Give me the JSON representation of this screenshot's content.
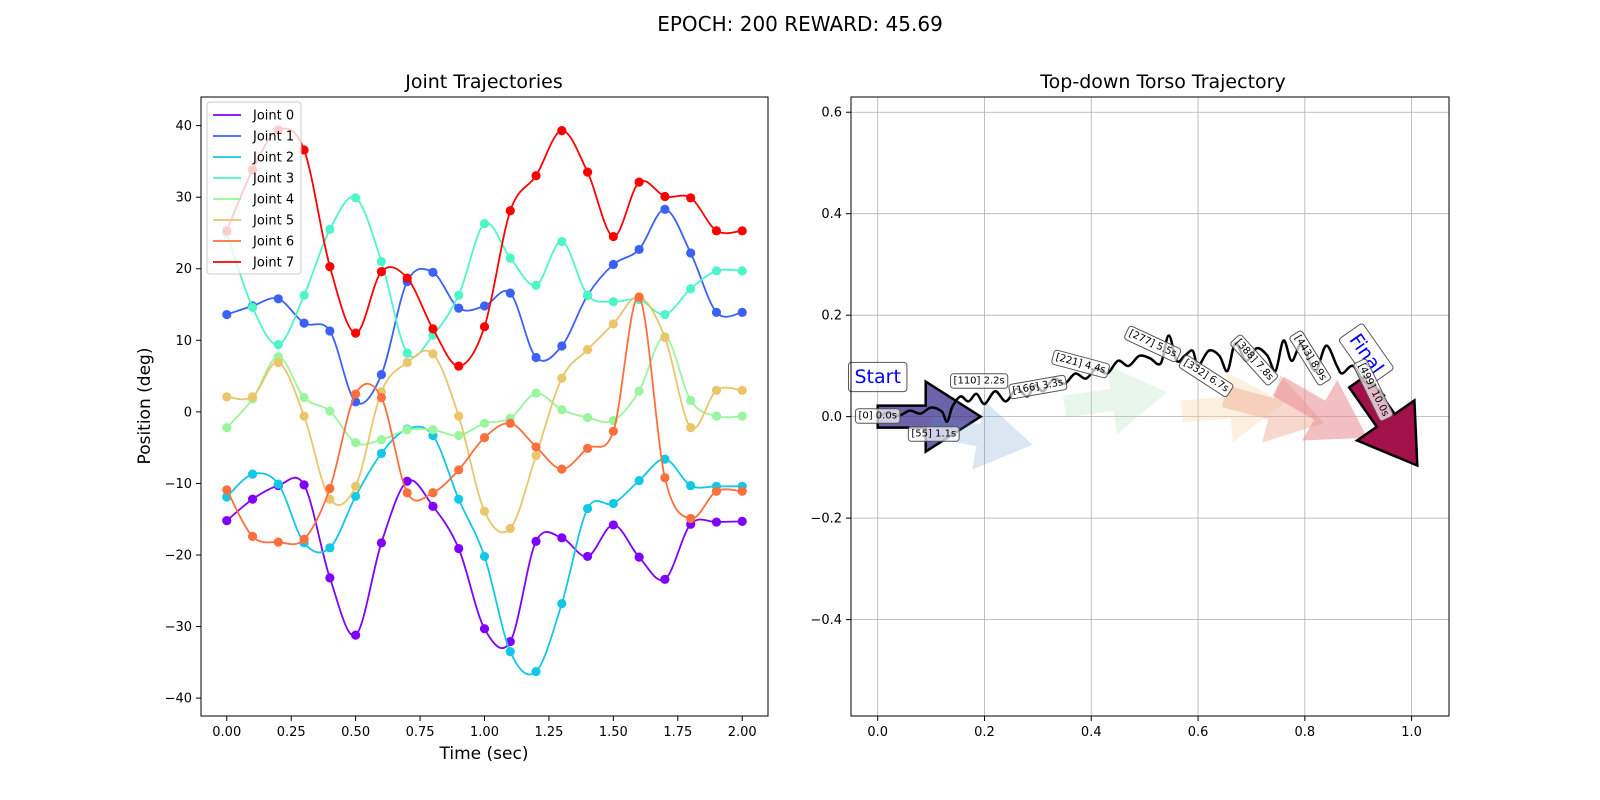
{
  "suptitle": "EPOCH: 200 REWARD:  45.69",
  "chart_data": [
    {
      "type": "line",
      "title": "Joint Trajectories",
      "xlabel": "Time (sec)",
      "ylabel": "Position (deg)",
      "xlim": [
        -0.1,
        2.1
      ],
      "ylim": [
        -42.5,
        44.0
      ],
      "xticks": [
        "0.00",
        "0.25",
        "0.50",
        "0.75",
        "1.00",
        "1.25",
        "1.50",
        "1.75",
        "2.00"
      ],
      "yticks": [
        "−40",
        "−30",
        "−20",
        "−10",
        "0",
        "10",
        "20",
        "30",
        "40"
      ],
      "legend_loc": "upper-left",
      "x": [
        0.0,
        0.1,
        0.2,
        0.3,
        0.4,
        0.5,
        0.6,
        0.7,
        0.8,
        0.9,
        1.0,
        1.1,
        1.2,
        1.3,
        1.4,
        1.5,
        1.6,
        1.7,
        1.8,
        1.9,
        2.0
      ],
      "series": [
        {
          "name": "Joint 0",
          "color": "#8000ff",
          "values": [
            -15.2,
            -12.2,
            -10.3,
            -10.2,
            -23.2,
            -31.2,
            -18.3,
            -9.7,
            -13.2,
            -19.1,
            -30.3,
            -32.1,
            -18.1,
            -17.6,
            -20.2,
            -15.8,
            -20.3,
            -23.4,
            -15.7,
            -15.4,
            -15.3
          ]
        },
        {
          "name": "Joint 1",
          "color": "#3b61f6",
          "values": [
            13.6,
            14.8,
            15.8,
            12.4,
            11.3,
            1.4,
            5.2,
            18.2,
            19.5,
            14.5,
            14.8,
            16.6,
            7.6,
            9.2,
            16.3,
            20.6,
            22.7,
            28.3,
            22.2,
            13.9,
            13.9
          ]
        },
        {
          "name": "Joint 2",
          "color": "#12c8e6",
          "values": [
            -11.9,
            -8.7,
            -10.1,
            -18.3,
            -19.0,
            -11.8,
            -5.8,
            -2.4,
            -3.3,
            -12.2,
            -20.2,
            -33.5,
            -36.3,
            -26.8,
            -13.5,
            -12.8,
            -9.6,
            -6.6,
            -10.3,
            -10.4,
            -10.4
          ]
        },
        {
          "name": "Joint 3",
          "color": "#4df5c8",
          "values": [
            24.9,
            14.6,
            9.4,
            16.3,
            25.5,
            29.9,
            21.0,
            8.2,
            10.7,
            16.3,
            26.3,
            21.5,
            17.7,
            23.8,
            16.3,
            15.4,
            15.7,
            13.6,
            17.2,
            19.7,
            19.7
          ]
        },
        {
          "name": "Joint 4",
          "color": "#99f59e",
          "values": [
            -2.2,
            1.8,
            7.7,
            2.0,
            0.1,
            -4.3,
            -3.9,
            -2.5,
            -2.5,
            -3.3,
            -1.6,
            -0.9,
            2.6,
            0.3,
            -0.8,
            -1.2,
            2.9,
            10.5,
            1.6,
            -0.6,
            -0.6
          ]
        },
        {
          "name": "Joint 5",
          "color": "#eac56a",
          "values": [
            2.1,
            2.1,
            6.9,
            -0.6,
            -12.2,
            -10.4,
            2.8,
            6.9,
            8.1,
            -0.6,
            -13.9,
            -16.3,
            -6.1,
            4.7,
            8.7,
            12.3,
            16.1,
            10.4,
            -2.2,
            3.0,
            3.0
          ]
        },
        {
          "name": "Joint 6",
          "color": "#ff6f3d",
          "values": [
            -10.9,
            -17.4,
            -18.2,
            -17.8,
            -10.7,
            2.5,
            2.0,
            -11.3,
            -11.3,
            -8.1,
            -3.6,
            -1.6,
            -4.9,
            -8.0,
            -5.1,
            -2.7,
            16.0,
            -9.2,
            -14.9,
            -11.1,
            -11.1
          ]
        },
        {
          "name": "Joint 7",
          "color": "#ff0000",
          "values": [
            25.3,
            33.8,
            39.4,
            36.6,
            20.3,
            11.0,
            19.6,
            18.7,
            11.6,
            6.4,
            11.9,
            28.1,
            33.0,
            39.3,
            33.5,
            24.5,
            32.1,
            30.1,
            29.9,
            25.3,
            25.3
          ]
        }
      ]
    },
    {
      "type": "line",
      "title": "Top-down Torso Trajectory",
      "xlabel": "",
      "ylabel": "",
      "xlim": [
        -0.05,
        1.07
      ],
      "ylim": [
        -0.59,
        0.63
      ],
      "grid": true,
      "xticks": [
        "0.0",
        "0.2",
        "0.4",
        "0.6",
        "0.8",
        "1.0"
      ],
      "yticks": [
        "0.6",
        "0.4",
        "0.2",
        "0.0",
        "−0.2",
        "−0.4"
      ],
      "path": {
        "x": [
          0.0,
          0.02,
          0.04,
          0.06,
          0.08,
          0.1,
          0.12,
          0.13,
          0.14,
          0.155,
          0.17,
          0.185,
          0.2,
          0.22,
          0.24,
          0.26,
          0.28,
          0.295,
          0.31,
          0.33,
          0.35,
          0.37,
          0.39,
          0.41,
          0.43,
          0.45,
          0.47,
          0.49,
          0.51,
          0.53,
          0.545,
          0.56,
          0.575,
          0.59,
          0.6,
          0.62,
          0.64,
          0.655,
          0.67,
          0.69,
          0.71,
          0.73,
          0.745,
          0.76,
          0.775,
          0.79,
          0.8,
          0.82,
          0.84,
          0.86,
          0.87,
          0.89,
          0.91,
          0.93,
          0.95
        ],
        "y": [
          0.0,
          0.008,
          0.002,
          0.012,
          0.006,
          0.018,
          0.01,
          -0.01,
          0.02,
          0.04,
          0.03,
          0.045,
          0.025,
          0.05,
          0.03,
          0.055,
          0.04,
          0.062,
          0.05,
          0.075,
          0.065,
          0.085,
          0.075,
          0.095,
          0.085,
          0.11,
          0.1,
          0.12,
          0.115,
          0.105,
          0.16,
          0.11,
          0.12,
          0.13,
          0.1,
          0.13,
          0.12,
          0.09,
          0.145,
          0.11,
          0.135,
          0.12,
          0.09,
          0.15,
          0.11,
          0.14,
          0.13,
          0.09,
          0.14,
          0.1,
          0.085,
          0.1,
          0.07,
          0.06,
          0.04
        ]
      },
      "annotations": [
        {
          "text": "Start"
        },
        {
          "text": "Final"
        },
        {
          "text": "[0] 0.0s"
        },
        {
          "text": "[55] 1.1s"
        },
        {
          "text": "[110] 2.2s"
        },
        {
          "text": "[166] 3.3s"
        },
        {
          "text": "[221] 4.4s"
        },
        {
          "text": "[277] 5.5s"
        },
        {
          "text": "[332] 6.7s"
        },
        {
          "text": "[388] 7.8s"
        },
        {
          "text": "[443] 8.9s"
        },
        {
          "text": "[499] 10.0s"
        }
      ],
      "arrows": [
        {
          "x": 0.0,
          "y": 0.0,
          "heading_deg": 0,
          "color": "#3b2f8f",
          "alpha": 0.75
        },
        {
          "x": 0.1,
          "y": -0.02,
          "heading_deg": -10,
          "color": "#5b8fc7",
          "alpha": 0.22
        },
        {
          "x": 0.35,
          "y": 0.02,
          "heading_deg": 8,
          "color": "#a8dcb0",
          "alpha": 0.25
        },
        {
          "x": 0.57,
          "y": 0.01,
          "heading_deg": 5,
          "color": "#f5d5a0",
          "alpha": 0.35
        },
        {
          "x": 0.65,
          "y": 0.04,
          "heading_deg": -15,
          "color": "#f0a890",
          "alpha": 0.45
        },
        {
          "x": 0.75,
          "y": 0.06,
          "heading_deg": -30,
          "color": "#e88a90",
          "alpha": 0.55
        },
        {
          "x": 0.9,
          "y": 0.07,
          "heading_deg": -55,
          "color": "#a3114a",
          "alpha": 1.0
        }
      ]
    }
  ]
}
